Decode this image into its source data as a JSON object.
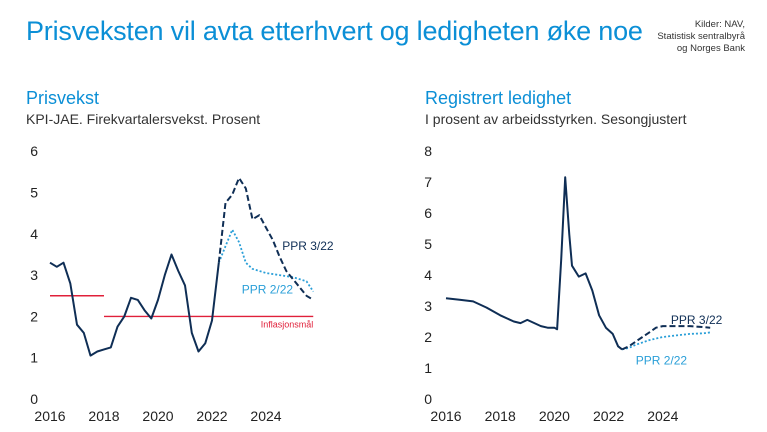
{
  "header": {
    "title": "Prisveksten vil avta etterhvert og ledigheten øke noe",
    "sources": [
      "Kilder: NAV,",
      "Statistisk sentralbyrå",
      "og Norges Bank"
    ]
  },
  "colors": {
    "navy": "#0f2e55",
    "light_blue": "#2a9fd8",
    "red": "#e0203a",
    "title_blue": "#0b8fd6"
  },
  "chart_data": [
    {
      "type": "line",
      "title": "Prisvekst",
      "subtitle": "KPI-JAE. Firekvartalersvekst. Prosent",
      "xlim": [
        2016,
        2026
      ],
      "ylim": [
        0,
        6
      ],
      "x_ticks": [
        2016,
        2018,
        2020,
        2022,
        2024
      ],
      "y_ticks": [
        0,
        1,
        2,
        3,
        4,
        5,
        6
      ],
      "grid": false,
      "series": [
        {
          "style": "solid",
          "points": [
            [
              2016.0,
              3.3
            ],
            [
              2016.25,
              3.2
            ],
            [
              2016.5,
              3.3
            ],
            [
              2016.75,
              2.8
            ],
            [
              2017.0,
              1.8
            ],
            [
              2017.25,
              1.6
            ],
            [
              2017.5,
              1.05
            ],
            [
              2017.75,
              1.15
            ],
            [
              2018.0,
              1.2
            ],
            [
              2018.25,
              1.25
            ],
            [
              2018.5,
              1.75
            ],
            [
              2018.75,
              2.0
            ],
            [
              2019.0,
              2.45
            ],
            [
              2019.25,
              2.4
            ],
            [
              2019.5,
              2.15
            ],
            [
              2019.75,
              1.95
            ],
            [
              2020.0,
              2.4
            ],
            [
              2020.25,
              3.0
            ],
            [
              2020.5,
              3.5
            ],
            [
              2020.75,
              3.1
            ],
            [
              2021.0,
              2.75
            ],
            [
              2021.25,
              1.6
            ],
            [
              2021.5,
              1.15
            ],
            [
              2021.75,
              1.35
            ],
            [
              2022.0,
              1.9
            ],
            [
              2022.25,
              3.3
            ]
          ]
        },
        {
          "name": "PPR 3/22",
          "style": "dashed",
          "points": [
            [
              2022.25,
              3.3
            ],
            [
              2022.5,
              4.75
            ],
            [
              2022.75,
              4.95
            ],
            [
              2023.0,
              5.35
            ],
            [
              2023.25,
              5.1
            ],
            [
              2023.5,
              4.35
            ],
            [
              2023.75,
              4.45
            ],
            [
              2024.0,
              4.15
            ],
            [
              2024.25,
              3.85
            ],
            [
              2024.5,
              3.45
            ],
            [
              2024.75,
              3.1
            ],
            [
              2025.0,
              2.9
            ],
            [
              2025.25,
              2.7
            ],
            [
              2025.5,
              2.5
            ],
            [
              2025.75,
              2.4
            ]
          ]
        },
        {
          "name": "PPR 2/22",
          "style": "dotted",
          "points": [
            [
              2022.25,
              3.3
            ],
            [
              2022.5,
              3.7
            ],
            [
              2022.75,
              4.1
            ],
            [
              2023.0,
              3.8
            ],
            [
              2023.25,
              3.3
            ],
            [
              2023.5,
              3.15
            ],
            [
              2024.0,
              3.05
            ],
            [
              2024.5,
              3.0
            ],
            [
              2025.0,
              2.95
            ],
            [
              2025.5,
              2.85
            ],
            [
              2025.75,
              2.6
            ]
          ]
        }
      ],
      "reference_lines": [
        {
          "label": "",
          "y": 2.5,
          "x": [
            2016,
            2018
          ]
        },
        {
          "label": "Inflasjonsmål",
          "y": 2.0,
          "x": [
            2018,
            2025.75
          ]
        }
      ]
    },
    {
      "type": "line",
      "title": "Registrert ledighet",
      "subtitle": "I prosent av arbeidsstyrken. Sesongjustert",
      "xlim": [
        2016,
        2026
      ],
      "ylim": [
        0,
        8
      ],
      "x_ticks": [
        2016,
        2018,
        2020,
        2022,
        2024
      ],
      "y_ticks": [
        0,
        1,
        2,
        3,
        4,
        5,
        6,
        7,
        8
      ],
      "grid": false,
      "series": [
        {
          "style": "solid",
          "points": [
            [
              2016.0,
              3.25
            ],
            [
              2016.5,
              3.2
            ],
            [
              2017.0,
              3.15
            ],
            [
              2017.5,
              2.95
            ],
            [
              2018.0,
              2.7
            ],
            [
              2018.5,
              2.5
            ],
            [
              2018.75,
              2.45
            ],
            [
              2019.0,
              2.55
            ],
            [
              2019.5,
              2.35
            ],
            [
              2019.75,
              2.3
            ],
            [
              2020.0,
              2.3
            ],
            [
              2020.1,
              2.25
            ],
            [
              2020.25,
              4.5
            ],
            [
              2020.4,
              7.15
            ],
            [
              2020.55,
              5.3
            ],
            [
              2020.65,
              4.3
            ],
            [
              2020.9,
              3.95
            ],
            [
              2021.15,
              4.05
            ],
            [
              2021.4,
              3.5
            ],
            [
              2021.65,
              2.7
            ],
            [
              2021.9,
              2.3
            ],
            [
              2022.15,
              2.1
            ],
            [
              2022.35,
              1.7
            ],
            [
              2022.5,
              1.6
            ]
          ]
        },
        {
          "name": "PPR 3/22",
          "style": "dashed",
          "points": [
            [
              2022.5,
              1.6
            ],
            [
              2022.75,
              1.7
            ],
            [
              2023.0,
              1.85
            ],
            [
              2023.25,
              2.0
            ],
            [
              2023.5,
              2.15
            ],
            [
              2023.75,
              2.3
            ],
            [
              2024.0,
              2.35
            ],
            [
              2024.5,
              2.35
            ],
            [
              2025.0,
              2.35
            ],
            [
              2025.5,
              2.32
            ],
            [
              2025.75,
              2.3
            ]
          ]
        },
        {
          "name": "PPR 2/22",
          "style": "dotted",
          "points": [
            [
              2022.5,
              1.6
            ],
            [
              2022.75,
              1.65
            ],
            [
              2023.0,
              1.75
            ],
            [
              2023.5,
              1.9
            ],
            [
              2024.0,
              2.0
            ],
            [
              2024.5,
              2.05
            ],
            [
              2025.0,
              2.1
            ],
            [
              2025.5,
              2.12
            ],
            [
              2025.75,
              2.15
            ]
          ]
        }
      ]
    }
  ]
}
